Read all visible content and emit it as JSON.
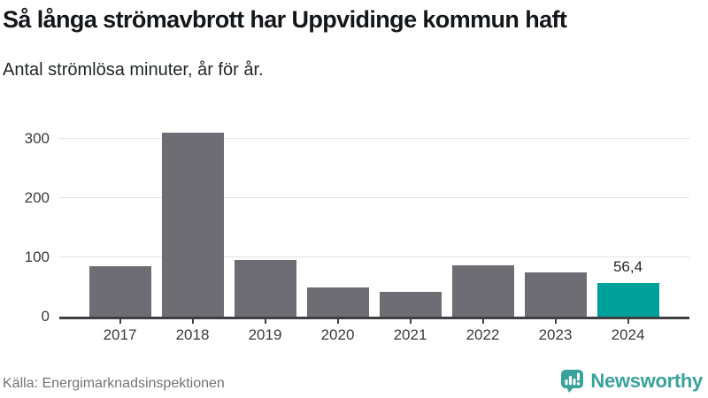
{
  "title": "Så långa strömavbrott har Uppvidinge kommun haft",
  "subtitle": "Antal strömlösa minuter, år för år.",
  "footer": {
    "source": "Källa: Energimarknadsinspektionen",
    "brand": "Newsworthy"
  },
  "icons": {
    "brand": "newsworthy-logo-icon"
  },
  "colors": {
    "bar_default": "#6d6d73",
    "bar_highlight": "#00a09a",
    "gridline": "#e4e4e4",
    "axis": "#3f3f44",
    "tick_label": "#3a3a40",
    "title": "#14171a",
    "source_text": "#73737b",
    "brand_teal": "#3aa29b"
  },
  "chart_data": {
    "type": "bar",
    "title": "Så långa strömavbrott har Uppvidinge kommun haft",
    "subtitle": "Antal strömlösa minuter, år för år.",
    "categories": [
      "2017",
      "2018",
      "2019",
      "2020",
      "2021",
      "2022",
      "2023",
      "2024"
    ],
    "values": [
      85,
      310,
      96,
      49,
      42,
      87,
      75,
      56.4
    ],
    "value_labels": [
      null,
      null,
      null,
      null,
      null,
      null,
      null,
      "56,4"
    ],
    "highlight_index": 7,
    "yticks": [
      0,
      100,
      200,
      300
    ],
    "ylim": [
      0,
      325
    ],
    "xlabel": "",
    "ylabel": "",
    "grid": true,
    "legend": false
  }
}
